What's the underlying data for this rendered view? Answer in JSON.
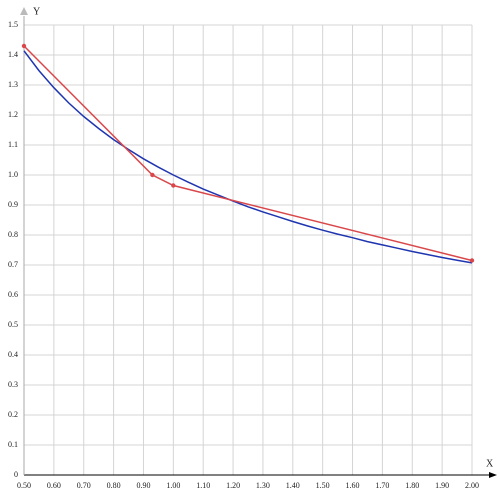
{
  "chart_data": {
    "type": "line",
    "x_label": "X",
    "y_label": "Y",
    "xlim": [
      0.5,
      2.0
    ],
    "ylim": [
      0,
      1.5
    ],
    "grid": true,
    "xticks": [
      {
        "value": 0.5,
        "label": "0.50"
      },
      {
        "value": 0.6,
        "label": "0.60"
      },
      {
        "value": 0.7,
        "label": "0.70"
      },
      {
        "value": 0.8,
        "label": "0.80"
      },
      {
        "value": 0.9,
        "label": "0.90"
      },
      {
        "value": 1.0,
        "label": "1.00"
      },
      {
        "value": 1.1,
        "label": "1.10"
      },
      {
        "value": 1.2,
        "label": "1.20"
      },
      {
        "value": 1.3,
        "label": "1.30"
      },
      {
        "value": 1.4,
        "label": "1.40"
      },
      {
        "value": 1.5,
        "label": "1.50"
      },
      {
        "value": 1.6,
        "label": "1.60"
      },
      {
        "value": 1.7,
        "label": "1.70"
      },
      {
        "value": 1.8,
        "label": "1.80"
      },
      {
        "value": 1.9,
        "label": "1.90"
      },
      {
        "value": 2.0,
        "label": "2.00"
      }
    ],
    "yticks": [
      0,
      0.1,
      0.2,
      0.3,
      0.4,
      0.5,
      0.6,
      0.7,
      0.8,
      0.9,
      {
        "value": 1.0,
        "label": "1.0"
      },
      1.1,
      1.2,
      1.3,
      1.4,
      1.5
    ],
    "series": [
      {
        "color": "#1f35b0",
        "markers": false,
        "x": [
          0.5,
          0.55,
          0.6,
          0.65,
          0.7,
          0.75,
          0.8,
          0.85,
          0.9,
          0.95,
          1.0,
          1.05,
          1.1,
          1.15,
          1.2,
          1.25,
          1.3,
          1.35,
          1.4,
          1.45,
          1.5,
          1.55,
          1.6,
          1.65,
          1.7,
          1.75,
          1.8,
          1.85,
          1.9,
          1.95,
          2.0
        ],
        "values": [
          1.414,
          1.348,
          1.291,
          1.24,
          1.195,
          1.155,
          1.118,
          1.085,
          1.054,
          1.026,
          1.0,
          0.976,
          0.953,
          0.933,
          0.913,
          0.894,
          0.877,
          0.861,
          0.845,
          0.83,
          0.816,
          0.803,
          0.791,
          0.778,
          0.767,
          0.756,
          0.745,
          0.735,
          0.725,
          0.716,
          0.707
        ]
      },
      {
        "color": "#d9474b",
        "markers": true,
        "x": [
          0.5,
          0.93,
          1.0,
          2.0
        ],
        "values": [
          1.43,
          1.0,
          0.965,
          0.715
        ]
      }
    ]
  }
}
